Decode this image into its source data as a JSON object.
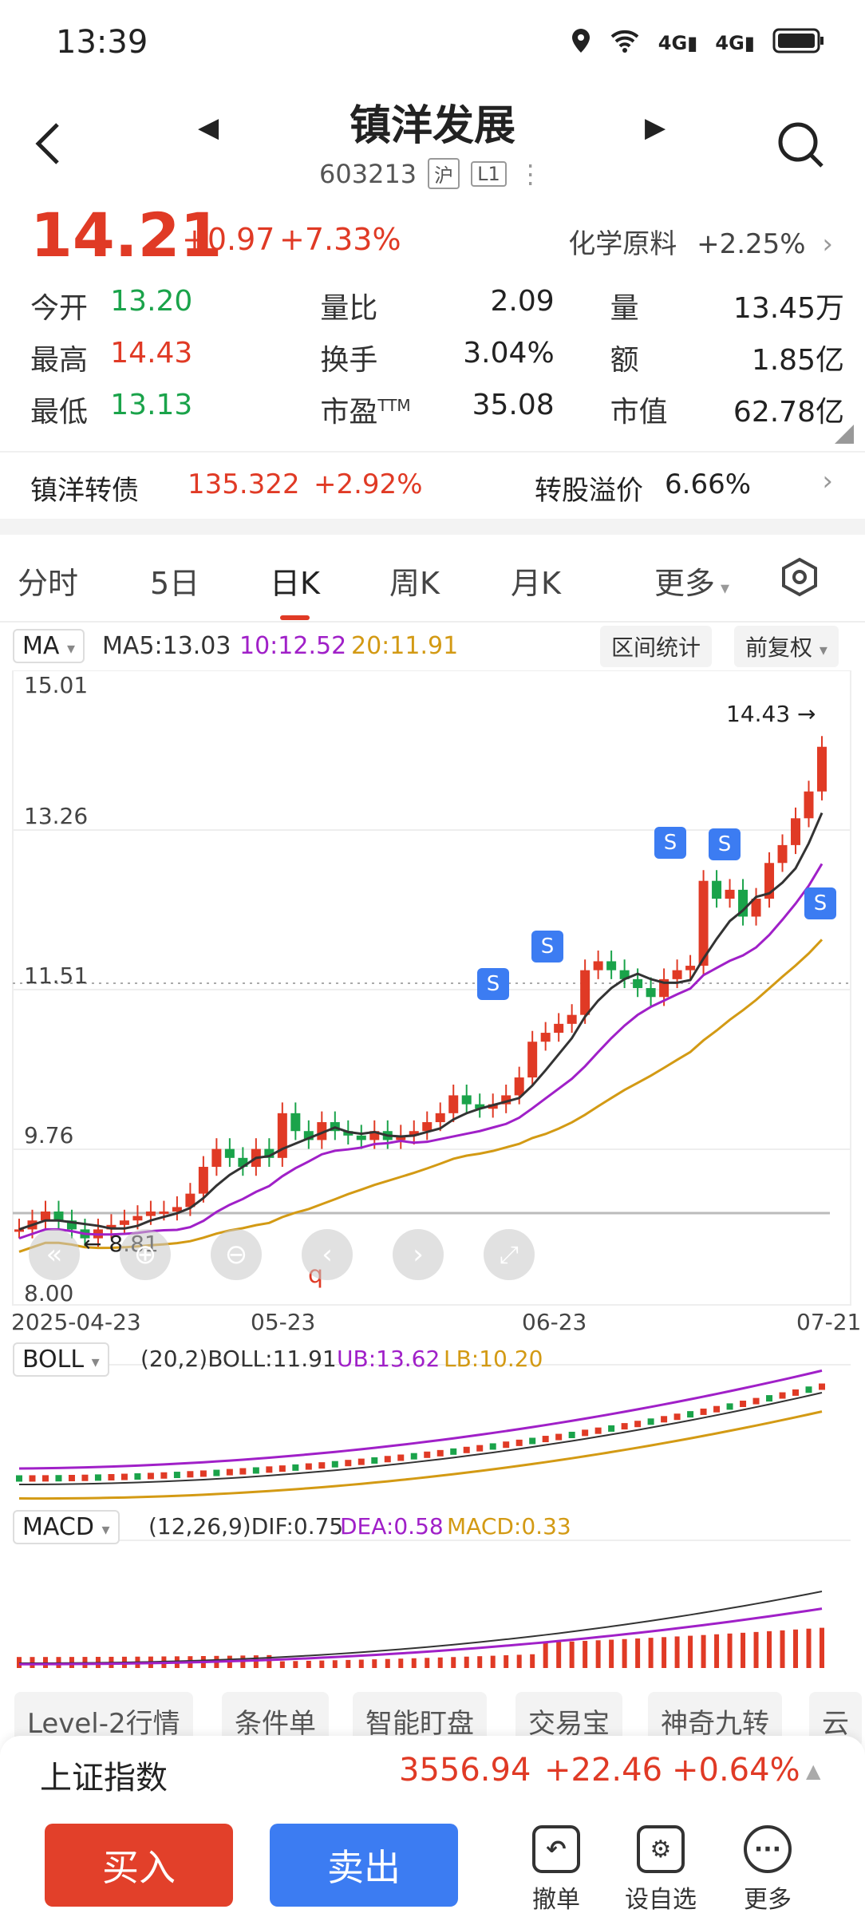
{
  "status_bar": {
    "time": "13:39",
    "net1": "4G",
    "net2": "4G"
  },
  "header": {
    "title": "镇洋发展",
    "code": "603213",
    "tag1": "沪",
    "tag2": "L1"
  },
  "quote": {
    "price": "14.21",
    "change": "+0.97",
    "change_pct": "+7.33%",
    "sector": "化学原料",
    "sector_pct": "+2.25%",
    "rows": [
      {
        "l1": "今开",
        "v1": "13.20",
        "l2": "量比",
        "v2": "2.09",
        "l3": "量",
        "v3": "13.45万"
      },
      {
        "l1": "最高",
        "v1": "14.43",
        "l2": "换手",
        "v2": "3.04%",
        "l3": "额",
        "v3": "1.85亿"
      },
      {
        "l1": "最低",
        "v1": "13.13",
        "l2": "市盈",
        "v2": "35.08",
        "l3": "市值",
        "v3": "62.78亿"
      }
    ],
    "pe_sup": "TTM"
  },
  "bond": {
    "name": "镇洋转债",
    "price": "135.322",
    "pct": "+2.92%",
    "premium_label": "转股溢价",
    "premium": "6.66%"
  },
  "tabs": [
    "分时",
    "5日",
    "日K",
    "周K",
    "月K",
    "更多"
  ],
  "ma_bar": {
    "indicator": "MA",
    "ma5": "MA5:13.03",
    "ma10": "10:12.52",
    "ma20": "20:11.91",
    "range_btn": "区间统计",
    "adjust_btn": "前复权"
  },
  "kline": {
    "y_labels": [
      "15.01",
      "13.26",
      "11.51",
      "9.76",
      "8.00"
    ],
    "x_labels": [
      "2025-04-23",
      "05-23",
      "06-23",
      "07-21"
    ],
    "high_marker": "14.43 →",
    "low_marker": "← 8.81",
    "q_marker": "q",
    "s_marker": "S"
  },
  "boll": {
    "name": "BOLL",
    "params": "(20,2)BOLL:11.91",
    "ub": "UB:13.62",
    "lb": "LB:10.20"
  },
  "macd": {
    "name": "MACD",
    "params": "(12,26,9)DIF:0.75",
    "dea": "DEA:0.58",
    "macd": "MACD:0.33"
  },
  "chips": [
    "Level-2行情",
    "条件单",
    "智能盯盘",
    "交易宝",
    "神奇九转",
    "云"
  ],
  "index": {
    "name": "上证指数",
    "value": "3556.94",
    "change": "+22.46",
    "pct": "+0.64%"
  },
  "trade": {
    "buy": "买入",
    "sell": "卖出",
    "t1": "撤单",
    "t2": "设自选",
    "t3": "更多"
  },
  "colors": {
    "up": "#e03a25",
    "down": "#1aa34a",
    "ma5": "#333333",
    "ma10": "#a020c8",
    "ma20": "#d39a14",
    "buy": "#e2402a",
    "sell": "#3c7cf2"
  }
}
